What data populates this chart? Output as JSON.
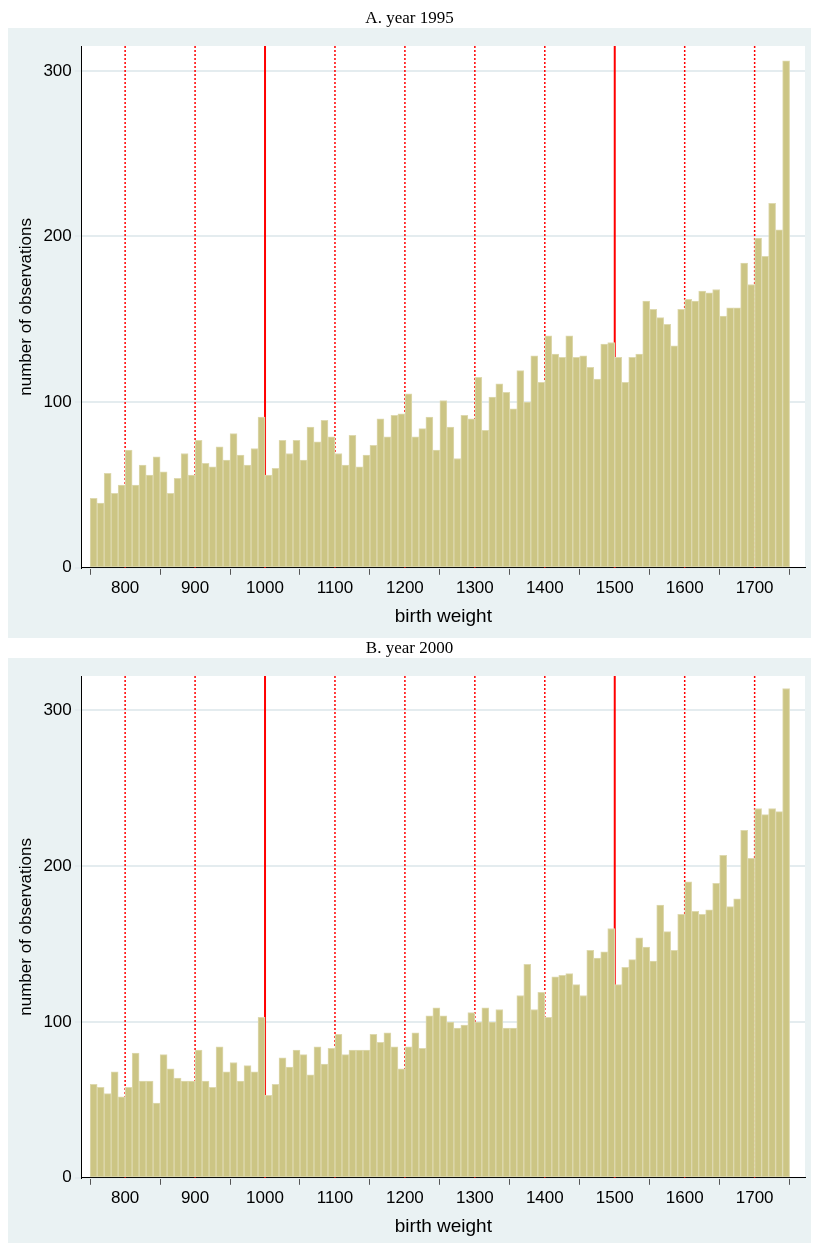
{
  "chart_data": [
    {
      "type": "histogram",
      "title": "A. year 1995",
      "xlabel": "birth weight",
      "ylabel": "number of observations",
      "color": "#ccc584",
      "grid": "y",
      "xlim": [
        738,
        1772
      ],
      "xticks": [
        800,
        900,
        1000,
        1100,
        1200,
        1300,
        1400,
        1500,
        1600,
        1700
      ],
      "ylim": [
        0,
        315
      ],
      "yticks": [
        0,
        100,
        200,
        300
      ],
      "bins": [
        750,
        760,
        770,
        780,
        790,
        800,
        810,
        820,
        830,
        840,
        850,
        860,
        870,
        880,
        890,
        900,
        910,
        920,
        930,
        940,
        950,
        960,
        970,
        980,
        990,
        1000,
        1010,
        1020,
        1030,
        1040,
        1050,
        1060,
        1070,
        1080,
        1090,
        1100,
        1110,
        1120,
        1130,
        1140,
        1150,
        1160,
        1170,
        1180,
        1190,
        1200,
        1210,
        1220,
        1230,
        1240,
        1250,
        1260,
        1270,
        1280,
        1290,
        1300,
        1310,
        1320,
        1330,
        1340,
        1350,
        1360,
        1370,
        1380,
        1390,
        1400,
        1410,
        1420,
        1430,
        1440,
        1450,
        1460,
        1470,
        1480,
        1490,
        1500,
        1510,
        1520,
        1530,
        1540,
        1550,
        1560,
        1570,
        1580,
        1590,
        1600,
        1610,
        1620,
        1630,
        1640,
        1650,
        1660,
        1670,
        1680,
        1690,
        1700,
        1710,
        1720,
        1730,
        1740,
        1750
      ],
      "values": [
        42,
        39,
        57,
        45,
        50,
        71,
        50,
        62,
        56,
        67,
        58,
        45,
        54,
        69,
        56,
        77,
        63,
        61,
        73,
        65,
        81,
        68,
        62,
        72,
        91,
        56,
        60,
        77,
        69,
        77,
        65,
        85,
        76,
        89,
        79,
        69,
        62,
        80,
        61,
        68,
        74,
        90,
        79,
        92,
        93,
        105,
        79,
        84,
        91,
        71,
        101,
        85,
        66,
        92,
        90,
        115,
        83,
        103,
        111,
        106,
        96,
        119,
        100,
        128,
        112,
        140,
        129,
        127,
        140,
        127,
        128,
        121,
        114,
        135,
        136,
        127,
        112,
        127,
        129,
        161,
        156,
        151,
        147,
        134,
        156,
        162,
        161,
        167,
        166,
        168,
        152,
        157,
        157,
        184,
        171,
        199,
        188,
        220,
        204,
        306
      ],
      "ref_lines": [
        {
          "axis": "x",
          "value": 800,
          "color": "#ff0000",
          "line_style": "dotted"
        },
        {
          "axis": "x",
          "value": 900,
          "color": "#ff0000",
          "line_style": "dotted"
        },
        {
          "axis": "x",
          "value": 1000,
          "color": "#ff0000",
          "line_style": "solid"
        },
        {
          "axis": "x",
          "value": 1100,
          "color": "#ff0000",
          "line_style": "dotted"
        },
        {
          "axis": "x",
          "value": 1200,
          "color": "#ff0000",
          "line_style": "dotted"
        },
        {
          "axis": "x",
          "value": 1300,
          "color": "#ff0000",
          "line_style": "dotted"
        },
        {
          "axis": "x",
          "value": 1400,
          "color": "#ff0000",
          "line_style": "dotted"
        },
        {
          "axis": "x",
          "value": 1500,
          "color": "#ff0000",
          "line_style": "solid"
        },
        {
          "axis": "x",
          "value": 1600,
          "color": "#ff0000",
          "line_style": "dotted"
        },
        {
          "axis": "x",
          "value": 1700,
          "color": "#ff0000",
          "line_style": "dotted"
        }
      ]
    },
    {
      "type": "histogram",
      "title": "B. year 2000",
      "xlabel": "birth weight",
      "ylabel": "number of observations",
      "color": "#ccc584",
      "grid": "y",
      "xlim": [
        738,
        1772
      ],
      "xticks": [
        800,
        900,
        1000,
        1100,
        1200,
        1300,
        1400,
        1500,
        1600,
        1700
      ],
      "ylim": [
        0,
        322
      ],
      "yticks": [
        0,
        100,
        200,
        300
      ],
      "bins": [
        750,
        760,
        770,
        780,
        790,
        800,
        810,
        820,
        830,
        840,
        850,
        860,
        870,
        880,
        890,
        900,
        910,
        920,
        930,
        940,
        950,
        960,
        970,
        980,
        990,
        1000,
        1010,
        1020,
        1030,
        1040,
        1050,
        1060,
        1070,
        1080,
        1090,
        1100,
        1110,
        1120,
        1130,
        1140,
        1150,
        1160,
        1170,
        1180,
        1190,
        1200,
        1210,
        1220,
        1230,
        1240,
        1250,
        1260,
        1270,
        1280,
        1290,
        1300,
        1310,
        1320,
        1330,
        1340,
        1350,
        1360,
        1370,
        1380,
        1390,
        1400,
        1410,
        1420,
        1430,
        1440,
        1450,
        1460,
        1470,
        1480,
        1490,
        1500,
        1510,
        1520,
        1530,
        1540,
        1550,
        1560,
        1570,
        1580,
        1590,
        1600,
        1610,
        1620,
        1630,
        1640,
        1650,
        1660,
        1670,
        1680,
        1690,
        1700,
        1710,
        1720,
        1730,
        1740,
        1750
      ],
      "values": [
        60,
        58,
        54,
        68,
        52,
        58,
        80,
        62,
        62,
        48,
        79,
        70,
        64,
        62,
        62,
        82,
        62,
        58,
        84,
        68,
        74,
        62,
        72,
        68,
        103,
        53,
        60,
        77,
        71,
        82,
        79,
        66,
        84,
        73,
        83,
        92,
        79,
        82,
        82,
        82,
        92,
        87,
        93,
        84,
        70,
        84,
        93,
        83,
        104,
        109,
        104,
        100,
        96,
        98,
        106,
        100,
        109,
        100,
        108,
        96,
        96,
        117,
        137,
        108,
        119,
        103,
        129,
        130,
        131,
        124,
        117,
        146,
        141,
        145,
        160,
        124,
        135,
        140,
        154,
        148,
        139,
        175,
        158,
        146,
        169,
        190,
        171,
        169,
        172,
        189,
        207,
        174,
        179,
        223,
        205,
        237,
        233,
        237,
        235,
        314
      ],
      "ref_lines": [
        {
          "axis": "x",
          "value": 800,
          "color": "#ff0000",
          "line_style": "dotted"
        },
        {
          "axis": "x",
          "value": 900,
          "color": "#ff0000",
          "line_style": "dotted"
        },
        {
          "axis": "x",
          "value": 1000,
          "color": "#ff0000",
          "line_style": "solid"
        },
        {
          "axis": "x",
          "value": 1100,
          "color": "#ff0000",
          "line_style": "dotted"
        },
        {
          "axis": "x",
          "value": 1200,
          "color": "#ff0000",
          "line_style": "dotted"
        },
        {
          "axis": "x",
          "value": 1300,
          "color": "#ff0000",
          "line_style": "dotted"
        },
        {
          "axis": "x",
          "value": 1400,
          "color": "#ff0000",
          "line_style": "dotted"
        },
        {
          "axis": "x",
          "value": 1500,
          "color": "#ff0000",
          "line_style": "solid"
        },
        {
          "axis": "x",
          "value": 1600,
          "color": "#ff0000",
          "line_style": "dotted"
        },
        {
          "axis": "x",
          "value": 1700,
          "color": "#ff0000",
          "line_style": "dotted"
        }
      ]
    }
  ]
}
